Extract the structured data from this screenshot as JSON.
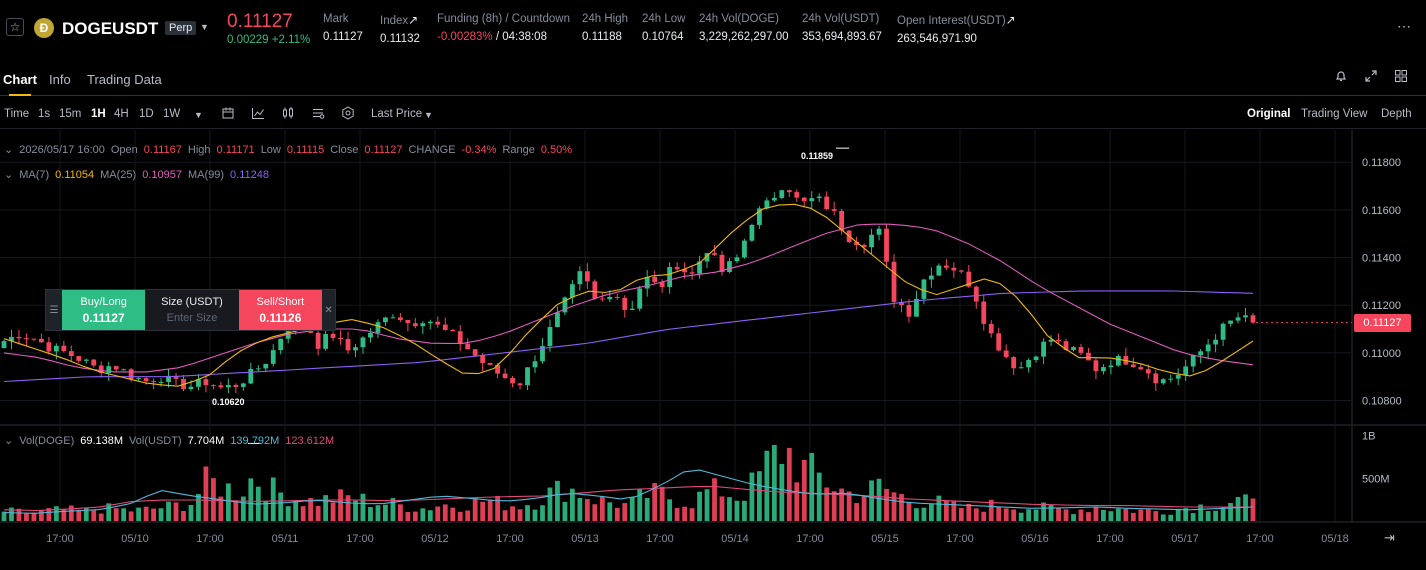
{
  "header": {
    "symbol": "DOGEUSDT",
    "badge": "Perp",
    "coin_glyph": "Ð",
    "last_price": "0.11127",
    "change": "0.00229 +2.11%",
    "stats": [
      {
        "label": "Mark",
        "value": "0.11127",
        "value_color": "#eaecef",
        "link": false
      },
      {
        "label": "Index",
        "value": "0.11132",
        "value_color": "#eaecef",
        "link": true
      },
      {
        "label": "Funding (8h) / Countdown",
        "value": "-0.00283%",
        "value2": " / 04:38:08",
        "value_color": "#f6465d",
        "link": false
      },
      {
        "label": "24h High",
        "value": "0.11188",
        "value_color": "#eaecef",
        "link": false
      },
      {
        "label": "24h Low",
        "value": "0.10764",
        "value_color": "#eaecef",
        "link": false
      },
      {
        "label": "24h Vol(DOGE)",
        "value": "3,229,262,297.00",
        "value_color": "#eaecef",
        "link": false
      },
      {
        "label": "24h Vol(USDT)",
        "value": "353,694,893.67",
        "value_color": "#eaecef",
        "link": false
      },
      {
        "label": "Open Interest(USDT)",
        "value": "263,546,971.90",
        "value_color": "#eaecef",
        "link": true
      }
    ]
  },
  "tabs": [
    {
      "label": "Chart",
      "active": true
    },
    {
      "label": "Info",
      "active": false
    },
    {
      "label": "Trading Data",
      "active": false
    }
  ],
  "toolbar": {
    "time_label": "Time",
    "intervals": [
      "1s",
      "15m",
      "1H",
      "4H",
      "1D",
      "1W"
    ],
    "selected_interval": "1H",
    "price_type": "Last Price",
    "views": [
      "Original",
      "Trading View",
      "Depth"
    ],
    "selected_view": "Original"
  },
  "ohlc": {
    "date": "2026/05/17 16:00",
    "open_label": "Open",
    "open": "0.11167",
    "high_label": "High",
    "high": "0.11171",
    "low_label": "Low",
    "low": "0.11115",
    "close_label": "Close",
    "close": "0.11127",
    "change_label": "CHANGE",
    "change": "-0.34%",
    "range_label": "Range",
    "range": "0.50%"
  },
  "ma": {
    "ma7_label": "MA(7)",
    "ma7": "0.11054",
    "ma25_label": "MA(25)",
    "ma25": "0.10957",
    "ma99_label": "MA(99)",
    "ma99": "0.11248"
  },
  "vol": {
    "doge_label": "Vol(DOGE)",
    "doge": "69.138M",
    "usdt_label": "Vol(USDT)",
    "usdt": "7.704M",
    "ma1": "139.792M",
    "ma2": "123.612M"
  },
  "trade_panel": {
    "buy_label": "Buy/Long",
    "buy_price": "0.11127",
    "size_label": "Size (USDT)",
    "size_placeholder": "Enter Size",
    "sell_label": "Sell/Short",
    "sell_price": "0.11126"
  },
  "markers": {
    "high": "0.11859",
    "low": "0.10620"
  },
  "colors": {
    "up": "#2ebd85",
    "down": "#f6465d",
    "ma7": "#f0b90b",
    "ma25": "#e05bbd",
    "ma99": "#8d5ff5",
    "vma1": "#4fb8d8",
    "vma2": "#e0487a"
  },
  "chart_data": {
    "type": "candlestick",
    "current_price": "0.11127",
    "price_ticks": [
      "0.11800",
      "0.11600",
      "0.11400",
      "0.11200",
      "0.11000",
      "0.10800"
    ],
    "volume_ticks": [
      "1B",
      "500M"
    ],
    "time_ticks": [
      "17:00",
      "05/10",
      "17:00",
      "05/11",
      "17:00",
      "05/12",
      "17:00",
      "05/13",
      "17:00",
      "05/14",
      "17:00",
      "05/15",
      "17:00",
      "05/16",
      "17:00",
      "05/17",
      "17:00",
      "05/18"
    ],
    "close_anchors": [
      0.1105,
      0.1108,
      0.1106,
      0.1102,
      0.11,
      0.1097,
      0.1093,
      0.1095,
      0.1091,
      0.1088,
      0.109,
      0.1087,
      0.1086,
      0.1088,
      0.1085,
      0.1087,
      0.1092,
      0.1098,
      0.111,
      0.112,
      0.1103,
      0.1108,
      0.1101,
      0.1106,
      0.1112,
      0.1117,
      0.1112,
      0.1115,
      0.111,
      0.1106,
      0.11,
      0.1094,
      0.109,
      0.1087,
      0.1098,
      0.111,
      0.1122,
      0.1134,
      0.112,
      0.1127,
      0.1116,
      0.1132,
      0.1127,
      0.1138,
      0.1132,
      0.1144,
      0.1134,
      0.114,
      0.1157,
      0.1163,
      0.1172,
      0.1162,
      0.1165,
      0.116,
      0.1149,
      0.1146,
      0.1152,
      0.1123,
      0.1117,
      0.1132,
      0.1138,
      0.1135,
      0.1128,
      0.111,
      0.11,
      0.1093,
      0.11,
      0.1106,
      0.1102,
      0.1099,
      0.1093,
      0.1097,
      0.1097,
      0.1094,
      0.1088,
      0.109,
      0.1096,
      0.1103,
      0.111,
      0.1115,
      0.1113
    ],
    "vol_anchors": [
      70,
      65,
      60,
      75,
      80,
      70,
      85,
      90,
      75,
      80,
      95,
      110,
      130,
      280,
      250,
      200,
      320,
      230,
      190,
      150,
      140,
      160,
      170,
      150,
      130,
      120,
      100,
      90,
      120,
      110,
      130,
      150,
      120,
      110,
      140,
      200,
      240,
      200,
      150,
      130,
      110,
      180,
      200,
      150,
      130,
      210,
      220,
      170,
      260,
      420,
      530,
      380,
      330,
      260,
      200,
      190,
      250,
      200,
      150,
      140,
      130,
      100,
      90,
      110,
      120,
      100,
      95,
      90,
      80,
      85,
      100,
      90,
      80,
      75,
      70,
      85,
      100,
      110,
      120,
      150,
      120
    ],
    "ma7_anchors": [
      0.1106,
      0.1102,
      0.1098,
      0.1093,
      0.109,
      0.1087,
      0.1086,
      0.109,
      0.11,
      0.1106,
      0.1109,
      0.1112,
      0.1114,
      0.1111,
      0.1105,
      0.1097,
      0.109,
      0.1094,
      0.1108,
      0.112,
      0.1126,
      0.1125,
      0.1132,
      0.1133,
      0.1138,
      0.115,
      0.116,
      0.1163,
      0.116,
      0.115,
      0.114,
      0.113,
      0.1124,
      0.1128,
      0.1132,
      0.1122,
      0.1106,
      0.1098,
      0.1098,
      0.1096,
      0.1092,
      0.109,
      0.1097,
      0.1105
    ],
    "ma25_anchors": [
      0.11,
      0.1098,
      0.1094,
      0.1092,
      0.1092,
      0.1094,
      0.1099,
      0.1104,
      0.1108,
      0.111,
      0.111,
      0.1106,
      0.1104,
      0.1104,
      0.1108,
      0.1114,
      0.112,
      0.1125,
      0.1128,
      0.1132,
      0.1134,
      0.1138,
      0.1144,
      0.115,
      0.1154,
      0.1154,
      0.1152,
      0.1146,
      0.1138,
      0.1128,
      0.112,
      0.1112,
      0.1106,
      0.11,
      0.1097,
      0.1095
    ],
    "ma99_anchors": [
      0.1088,
      0.109,
      0.109,
      0.1092,
      0.1094,
      0.1096,
      0.11,
      0.1104,
      0.111,
      0.1114,
      0.1118,
      0.1122,
      0.1125,
      0.1126,
      0.1126,
      0.1125
    ],
    "vma1_anchors": [
      60,
      55,
      70,
      80,
      120,
      220,
      180,
      150,
      120,
      130,
      150,
      130,
      120,
      150,
      180,
      160,
      140,
      160,
      200,
      180,
      150,
      250,
      380,
      320,
      260,
      220,
      190,
      200,
      160,
      130,
      120,
      110,
      100,
      90,
      95,
      100,
      90,
      85,
      80,
      90,
      100
    ],
    "vma2_anchors": [
      80,
      75,
      85,
      100,
      140,
      150,
      150,
      145,
      140,
      145,
      150,
      150,
      145,
      150,
      160,
      170,
      175,
      180,
      200,
      220,
      230,
      240,
      250,
      230,
      210,
      200,
      190,
      180,
      160,
      150,
      140,
      130,
      120,
      115,
      110,
      110,
      105,
      100,
      100,
      100
    ]
  }
}
